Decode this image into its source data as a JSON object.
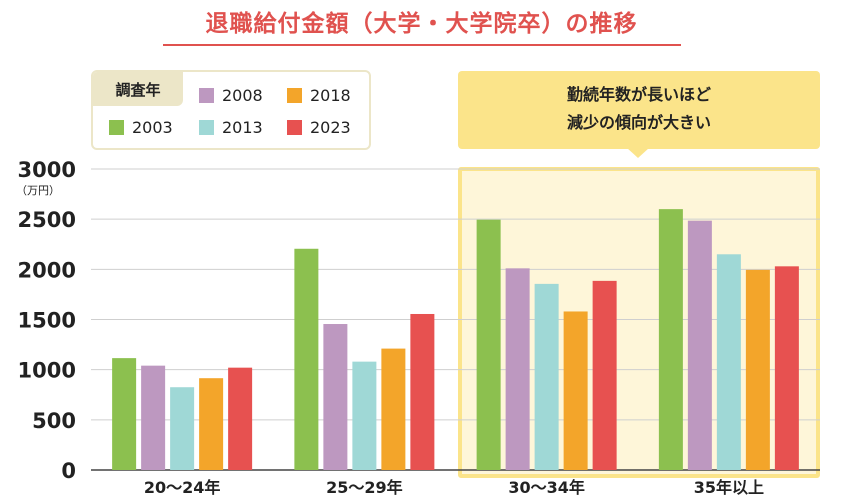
{
  "title": "退職給付金額（大学・大学院卒）の推移",
  "legend": {
    "header": "調査年",
    "items": [
      {
        "label": "2003",
        "color": "#8cc04f"
      },
      {
        "label": "2008",
        "color": "#bd98c0"
      },
      {
        "label": "2013",
        "color": "#9fd8d6"
      },
      {
        "label": "2018",
        "color": "#f3a52a"
      },
      {
        "label": "2023",
        "color": "#e75150"
      }
    ]
  },
  "callout": {
    "line1": "勤続年数が長いほど",
    "line2": "減少の傾向が大きい"
  },
  "chart_data": {
    "type": "bar",
    "unit_label": "（万円）",
    "categories": [
      "20～24年",
      "25～29年",
      "30～34年",
      "35年以上"
    ],
    "series": [
      {
        "name": "2003",
        "values": [
          1115,
          2205,
          2495,
          2600
        ]
      },
      {
        "name": "2008",
        "values": [
          1040,
          1455,
          2010,
          2485
        ]
      },
      {
        "name": "2013",
        "values": [
          825,
          1080,
          1855,
          2150
        ]
      },
      {
        "name": "2018",
        "values": [
          915,
          1210,
          1580,
          1995
        ]
      },
      {
        "name": "2023",
        "values": [
          1020,
          1555,
          1885,
          2030
        ]
      }
    ],
    "yticks": [
      "0",
      "500",
      "1000",
      "1500",
      "2000",
      "2500",
      "3000"
    ],
    "ylim": [
      0,
      3000
    ],
    "grid": true,
    "highlighted_category": "30～34年"
  }
}
